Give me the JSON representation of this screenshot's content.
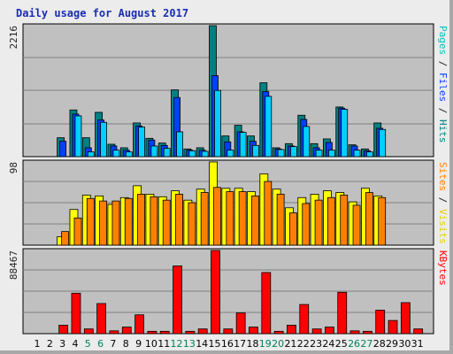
{
  "title": "Daily usage for August 2017",
  "colors": {
    "hits": "#00d0ff",
    "files": "#0040ff",
    "pages": "#008080",
    "visits": "#ffff00",
    "sites": "#ff8000",
    "kbytes": "#ff0000",
    "weekend_label": "#00805c",
    "plot_bg": "#c0c0c0"
  },
  "chart_data": {
    "type": "bar",
    "categories": [
      "1",
      "2",
      "3",
      "4",
      "5",
      "6",
      "7",
      "8",
      "9",
      "10",
      "11",
      "12",
      "13",
      "14",
      "15",
      "16",
      "17",
      "18",
      "19",
      "20",
      "21",
      "22",
      "23",
      "24",
      "25",
      "26",
      "27",
      "28",
      "29",
      "30",
      "31"
    ],
    "weekend_days": [
      "5",
      "6",
      "12",
      "13",
      "19",
      "20",
      "26",
      "27"
    ],
    "panels": [
      {
        "name": "top",
        "ymax_label": "2216",
        "ymax": 2216,
        "right_labels": [
          {
            "text": "Pages",
            "color": "#00c0c0"
          },
          {
            "text": " / ",
            "color": "#222222"
          },
          {
            "text": "Files",
            "color": "#0040ff"
          },
          {
            "text": " / ",
            "color": "#222222"
          },
          {
            "text": "Hits",
            "color": "#008080"
          }
        ],
        "series": [
          {
            "name": "Hits",
            "color": "#008080",
            "values": [
              0,
              0,
              320,
              790,
              320,
              750,
              210,
              150,
              570,
              310,
              230,
              1130,
              130,
              150,
              2216,
              350,
              530,
              350,
              1250,
              150,
              220,
              700,
              220,
              300,
              840,
              200,
              130,
              570,
              0,
              0,
              0
            ]
          },
          {
            "name": "Files",
            "color": "#0040ff",
            "values": [
              0,
              0,
              260,
              720,
              150,
              620,
              180,
              110,
              520,
              280,
              190,
              1000,
              110,
              110,
              1370,
              250,
              420,
              260,
              1100,
              130,
              180,
              630,
              150,
              240,
              820,
              180,
              100,
              480,
              0,
              0,
              0
            ]
          },
          {
            "name": "Pages",
            "color": "#00d0ff",
            "values": [
              0,
              0,
              0,
              690,
              80,
              580,
              110,
              80,
              500,
              180,
              140,
              420,
              100,
              90,
              1120,
              110,
              410,
              190,
              1020,
              120,
              170,
              510,
              110,
              110,
              800,
              110,
              80,
              460,
              0,
              0,
              0
            ]
          }
        ]
      },
      {
        "name": "middle",
        "ymax_label": "98",
        "ymax": 98,
        "right_labels": [
          {
            "text": "Sites",
            "color": "#ff8000"
          },
          {
            "text": " / ",
            "color": "#222222"
          },
          {
            "text": "Visits",
            "color": "#e8d000"
          }
        ],
        "series": [
          {
            "name": "Visits",
            "color": "#ffff00",
            "values": [
              0,
              0,
              10,
              42,
              59,
              58,
              48,
              56,
              70,
              60,
              57,
              64,
              53,
              66,
              98,
              67,
              67,
              63,
              84,
              66,
              44,
              56,
              60,
              64,
              62,
              51,
              67,
              58,
              0,
              0,
              0
            ]
          },
          {
            "name": "Sites",
            "color": "#ff8000",
            "values": [
              0,
              0,
              16,
              32,
              55,
              52,
              52,
              55,
              60,
              57,
              53,
              60,
              50,
              62,
              68,
              63,
              63,
              58,
              75,
              60,
              38,
              49,
              53,
              56,
              59,
              47,
              62,
              56,
              0,
              0,
              0
            ]
          }
        ]
      },
      {
        "name": "bottom",
        "ymax_label": "88467",
        "ymax": 88467,
        "right_labels": [
          {
            "text": "KBytes",
            "color": "#ff0000"
          }
        ],
        "series": [
          {
            "name": "KBytes",
            "color": "#ff0000",
            "values": [
              0,
              0,
              9000,
              43000,
              5000,
              32000,
              3000,
              7000,
              20000,
              2500,
              2500,
              72000,
              2500,
              5000,
              88467,
              5000,
              22000,
              7000,
              65000,
              2500,
              9000,
              31000,
              5000,
              7000,
              44000,
              3000,
              2500,
              25000,
              14000,
              33000,
              5000
            ]
          }
        ]
      }
    ]
  }
}
